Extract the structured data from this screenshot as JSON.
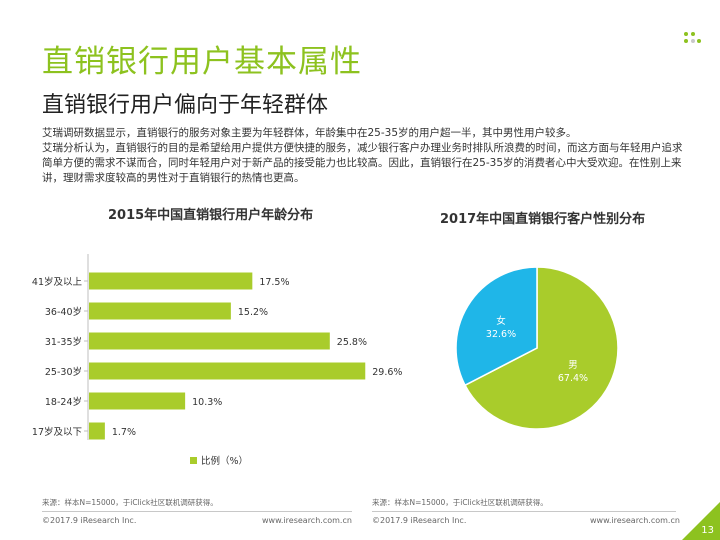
{
  "header": {
    "title": "直销银行用户基本属性",
    "subtitle": "直销银行用户偏向于年轻群体"
  },
  "description": [
    "艾瑞调研数据显示，直销银行的服务对象主要为年轻群体，年龄集中在25-35岁的用户超一半，其中男性用户较多。",
    "艾瑞分析认为，直销银行的目的是希望给用户提供方便快捷的服务，减少银行客户办理业务时排队所浪费的时间，而这方面与年轻用户追求简单方便的需求不谋而合，同时年轻用户对于新产品的接受能力也比较高。因此，直销银行在25-35岁的消费者心中大受欢迎。在性别上来讲，理财需求度较高的男性对于直销银行的热情也更高。"
  ],
  "chart_data": [
    {
      "type": "bar",
      "orientation": "horizontal",
      "title": "2015年中国直销银行用户年龄分布",
      "categories": [
        "41岁及以上",
        "36-40岁",
        "31-35岁",
        "25-30岁",
        "18-24岁",
        "17岁及以下"
      ],
      "values": [
        17.5,
        15.2,
        25.8,
        29.6,
        10.3,
        1.7
      ],
      "value_labels": [
        "17.5%",
        "15.2%",
        "25.8%",
        "29.6%",
        "10.3%",
        "1.7%"
      ],
      "xlim": [
        0,
        30
      ],
      "legend": "比例（%）",
      "color": "#a9cc2b"
    },
    {
      "type": "pie",
      "title": "2017年中国直销银行客户性别分布",
      "labels": [
        "男",
        "女"
      ],
      "values": [
        67.4,
        32.6
      ],
      "value_labels": [
        "67.4%",
        "32.6%"
      ],
      "colors": [
        "#a9cc2b",
        "#1fb6e8"
      ]
    }
  ],
  "footer": {
    "source_left": "来源：样本N=15000，于iClick社区联机调研获得。",
    "source_right": "来源：样本N=15000，于iClick社区联机调研获得。",
    "copyright": "©2017.9 iResearch Inc.",
    "website": "www.iresearch.com.cn",
    "page": "13"
  }
}
